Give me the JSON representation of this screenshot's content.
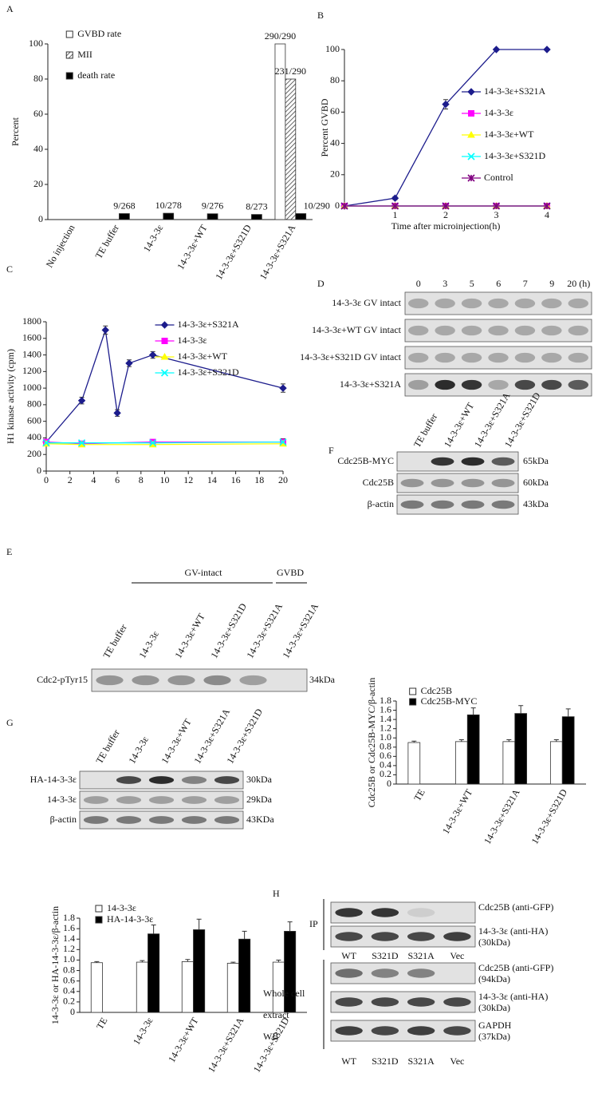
{
  "chart_data": [
    {
      "panel": "A",
      "type": "bar",
      "ylabel": "Percent",
      "categories": [
        "No injection",
        "TE buffer",
        "14-3-3ε",
        "14-3-3ε+WT",
        "14-3-3ε+S321D",
        "14-3-3ε+S321A"
      ],
      "series": [
        {
          "name": "GVBD rate",
          "color": "#ffffff",
          "values": [
            0,
            0,
            0,
            0,
            0,
            100
          ],
          "value_labels": [
            null,
            null,
            null,
            null,
            null,
            "290/290"
          ]
        },
        {
          "name": "MII",
          "color": "#ffffff",
          "hatch": true,
          "values": [
            0,
            0,
            0,
            0,
            0,
            80
          ],
          "value_labels": [
            null,
            null,
            null,
            null,
            null,
            "231/290"
          ]
        },
        {
          "name": "death rate",
          "color": "#000000",
          "values": [
            0,
            3.4,
            3.6,
            3.3,
            2.9,
            3.4
          ],
          "value_labels": [
            null,
            "9/268",
            "10/278",
            "9/276",
            "8/273",
            "10/290"
          ]
        }
      ],
      "ylim": [
        0,
        100
      ],
      "yticks": [
        0,
        20,
        40,
        60,
        80,
        100
      ],
      "legend": "upper left"
    },
    {
      "panel": "B",
      "type": "line",
      "ylabel": "Percent GVBD",
      "xlabel": "Time after microinjection(h)",
      "x": [
        0,
        1,
        2,
        3,
        4
      ],
      "xlim": [
        0,
        4
      ],
      "xticks": [
        1,
        2,
        3,
        4
      ],
      "ylim": [
        0,
        100
      ],
      "yticks": [
        0,
        20,
        40,
        60,
        80,
        100
      ],
      "series": [
        {
          "name": "14-3-3ε+S321A",
          "color": "#1c1c8c",
          "marker": "diamond",
          "values": [
            0,
            5,
            65,
            100,
            100
          ],
          "errors": [
            0,
            1,
            3,
            0,
            0
          ]
        },
        {
          "name": "14-3-3ε",
          "color": "#ff00ff",
          "marker": "square",
          "values": [
            0,
            0,
            0,
            0,
            0
          ]
        },
        {
          "name": "14-3-3ε+WT",
          "color": "#ffff00",
          "marker": "triangle",
          "values": [
            0,
            0,
            0,
            0,
            0
          ]
        },
        {
          "name": "14-3-3ε+S321D",
          "color": "#00ffff",
          "marker": "x",
          "values": [
            0,
            0,
            0,
            0,
            0
          ]
        },
        {
          "name": "Control",
          "color": "#800080",
          "marker": "star",
          "values": [
            0,
            0,
            0,
            0,
            0
          ]
        }
      ],
      "legend": "center right"
    },
    {
      "panel": "C",
      "type": "line",
      "ylabel": "H1 kinase activity (cpm)",
      "xlim": [
        0,
        20
      ],
      "xticks": [
        0,
        2,
        4,
        6,
        8,
        10,
        12,
        14,
        16,
        18,
        20
      ],
      "ylim": [
        0,
        1800
      ],
      "yticks": [
        0,
        200,
        400,
        600,
        800,
        1000,
        1200,
        1400,
        1600,
        1800
      ],
      "series": [
        {
          "name": "14-3-3ε+S321A",
          "color": "#1c1c8c",
          "marker": "diamond",
          "x": [
            0,
            3,
            5,
            6,
            7,
            9,
            20
          ],
          "values": [
            350,
            850,
            1700,
            700,
            1300,
            1400,
            1000
          ],
          "errors": [
            20,
            40,
            50,
            40,
            40,
            40,
            50
          ]
        },
        {
          "name": "14-3-3ε",
          "color": "#ff00ff",
          "marker": "square",
          "x": [
            0,
            3,
            9,
            20
          ],
          "values": [
            350,
            330,
            350,
            350
          ],
          "errors": [
            20,
            20,
            30,
            40
          ]
        },
        {
          "name": "14-3-3ε+WT",
          "color": "#ffff00",
          "marker": "triangle",
          "x": [
            0,
            3,
            9,
            20
          ],
          "values": [
            330,
            320,
            320,
            330
          ]
        },
        {
          "name": "14-3-3ε+S321D",
          "color": "#00ffff",
          "marker": "x",
          "x": [
            0,
            3,
            9,
            20
          ],
          "values": [
            340,
            340,
            340,
            350
          ]
        }
      ],
      "legend": "upper center"
    },
    {
      "panel": "F",
      "type": "bar",
      "ylabel": "Cdc25B or Cdc25B-MYC/β-actin",
      "categories": [
        "TE",
        "14-3-3ε+WT",
        "14-3-3ε+S321A",
        "14-3-3ε+S321D"
      ],
      "series": [
        {
          "name": "Cdc25B",
          "color": "#ffffff",
          "values": [
            0.9,
            0.92,
            0.92,
            0.92
          ],
          "errors": [
            0.03,
            0.04,
            0.04,
            0.04
          ]
        },
        {
          "name": "Cdc25B-MYC",
          "color": "#000000",
          "values": [
            null,
            1.5,
            1.53,
            1.46
          ],
          "errors": [
            null,
            0.15,
            0.17,
            0.17
          ]
        }
      ],
      "ylim": [
        0,
        1.8
      ],
      "yticks": [
        0,
        0.2,
        0.4,
        0.6,
        0.8,
        {
          "value": 1,
          "label": "1.0"
        },
        1.2,
        1.4,
        1.6,
        1.8
      ],
      "legend": "upper left"
    },
    {
      "panel": "G",
      "type": "bar",
      "ylabel": "14-3-3ε or HA-14-3-3ε/β-actin",
      "categories": [
        "TE",
        "14-3-3ε",
        "14-3-3ε+WT",
        "14-3-3ε+S321A",
        "14-3-3ε+S321D"
      ],
      "series": [
        {
          "name": "14-3-3ε",
          "color": "#ffffff",
          "values": [
            0.95,
            0.96,
            0.97,
            0.94,
            0.96
          ],
          "errors": [
            0.02,
            0.03,
            0.04,
            0.02,
            0.04
          ]
        },
        {
          "name": "HA-14-3-3ε",
          "color": "#000000",
          "values": [
            null,
            1.5,
            1.58,
            1.4,
            1.55
          ],
          "errors": [
            null,
            0.17,
            0.2,
            0.15,
            0.18
          ]
        }
      ],
      "ylim": [
        0,
        1.8
      ],
      "yticks": [
        0,
        0.2,
        0.4,
        0.6,
        0.8,
        {
          "value": 1,
          "label": "1.0"
        },
        1.2,
        1.4,
        1.6,
        1.8
      ],
      "legend": "upper left"
    }
  ],
  "blots": {
    "D": {
      "label": "D",
      "lanes": [
        "0",
        "3",
        "5",
        "6",
        "7",
        "9",
        "20 (h)"
      ],
      "rows": [
        "14-3-3ε GV intact",
        "14-3-3ε+WT GV intact",
        "14-3-3ε+S321D GV intact",
        "14-3-3ε+S321A"
      ]
    },
    "E": {
      "label": "E",
      "groups": [
        "GV-intact",
        "GVBD"
      ],
      "lanes": [
        "TE buffer",
        "14-3-3ε",
        "14-3-3ε+WT",
        "14-3-3ε+S321D",
        "14-3-3ε+S321A",
        "14-3-3ε+S321A"
      ],
      "rows": [
        "Cdc2-pTyr15"
      ],
      "sizes": [
        "34kDa"
      ]
    },
    "F": {
      "label": "F",
      "lanes": [
        "TE buffer",
        "14-3-3ε+WT",
        "14-3-3ε+S321A",
        "14-3-3ε+S321D"
      ],
      "rows": [
        "Cdc25B-MYC",
        "Cdc25B",
        "β-actin"
      ],
      "sizes": [
        "65kDa",
        "60kDa",
        "43kDa"
      ]
    },
    "G": {
      "label": "G",
      "lanes": [
        "TE buffer",
        "14-3-3ε",
        "14-3-3ε+WT",
        "14-3-3ε+S321A",
        "14-3-3ε+S321D"
      ],
      "rows": [
        "HA-14-3-3ε",
        "14-3-3ε",
        "β-actin"
      ],
      "sizes": [
        "30kDa",
        "29kDa",
        "43KDa"
      ]
    },
    "H": {
      "label": "H",
      "lanes": [
        "WT",
        "S321D",
        "S321A",
        "Vec"
      ],
      "sections": [
        {
          "label": [
            "IP"
          ],
          "rows": [
            [
              "Cdc25B (anti-GFP)"
            ],
            [
              "14-3-3ε (anti-HA)",
              "(30kDa)"
            ]
          ]
        },
        {
          "label": [
            "Whole cell",
            "extract",
            "WB"
          ],
          "rows": [
            [
              "Cdc25B (anti-GFP)",
              "(94kDa)"
            ],
            [
              "14-3-3ε (anti-HA)",
              "(30kDa)"
            ],
            [
              "GAPDH",
              "(37kDa)"
            ]
          ]
        }
      ]
    }
  }
}
